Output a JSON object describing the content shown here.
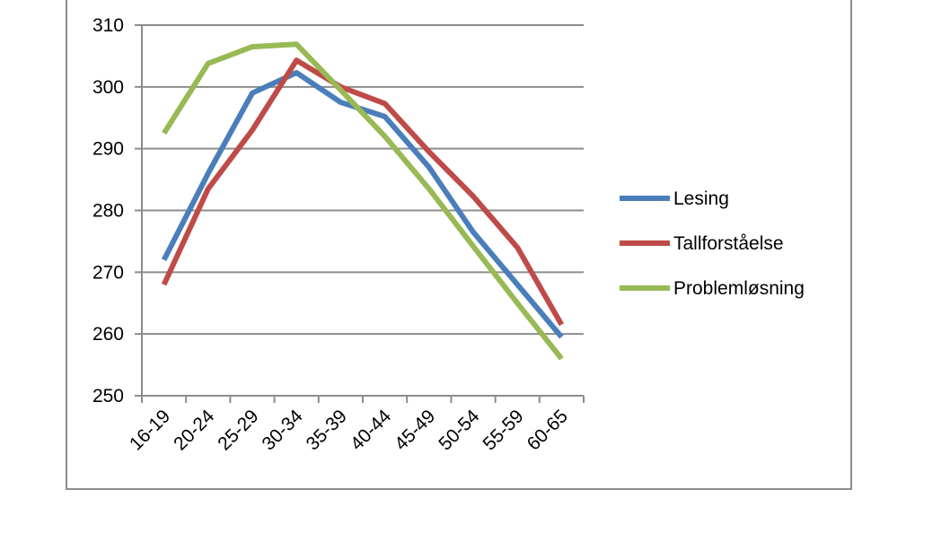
{
  "chart_data": {
    "type": "line",
    "title": "",
    "xlabel": "",
    "ylabel": "",
    "categories": [
      "16-19",
      "20-24",
      "25-29",
      "30-34",
      "35-39",
      "40-44",
      "45-49",
      "50-54",
      "55-59",
      "60-65"
    ],
    "ylim": [
      250,
      310
    ],
    "yticks": [
      250,
      260,
      270,
      280,
      290,
      300,
      310
    ],
    "grid": true,
    "legend_position": "right",
    "series": [
      {
        "name": "Lesing",
        "color": "#4a7ebb",
        "values": [
          272,
          286,
          299,
          302.3,
          297.5,
          295.2,
          287,
          276.5,
          268,
          259.5
        ]
      },
      {
        "name": "Tallforståelse",
        "color": "#be4b48",
        "values": [
          268,
          283.5,
          293,
          304.3,
          300,
          297.3,
          289.5,
          282.3,
          274,
          261.5
        ]
      },
      {
        "name": "Problemløsning",
        "color": "#98b954",
        "values": [
          292.5,
          303.8,
          306.5,
          306.9,
          299.5,
          292,
          283.5,
          274.2,
          265,
          256
        ]
      }
    ]
  }
}
